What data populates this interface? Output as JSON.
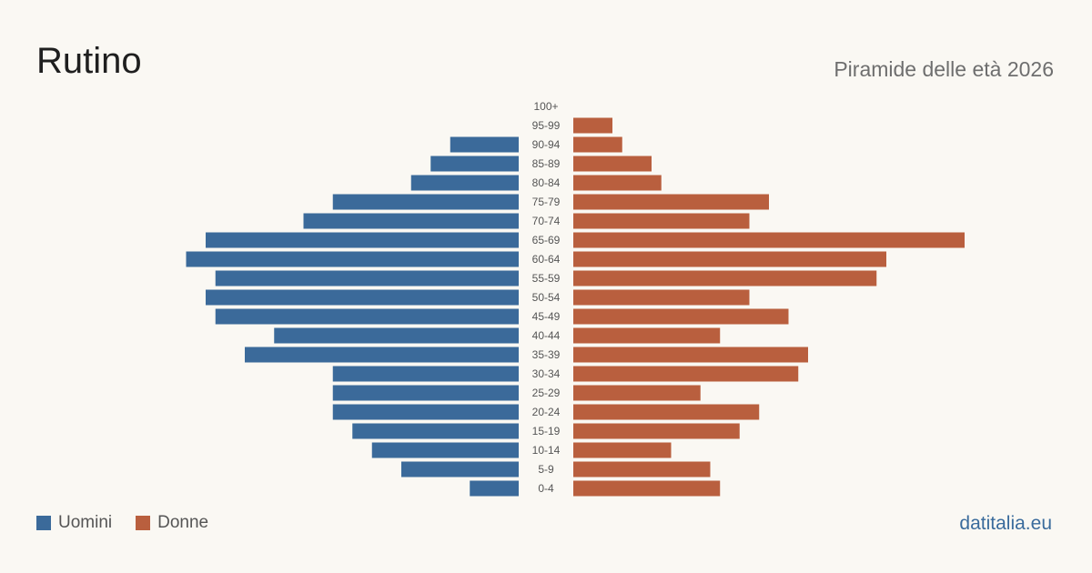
{
  "header": {
    "title": "Rutino",
    "subtitle": "Piramide delle età 2026"
  },
  "legend": {
    "male_label": "Uomini",
    "female_label": "Donne"
  },
  "footer": {
    "brand": "datitalia.eu"
  },
  "colors": {
    "male": "#3b6a9a",
    "female": "#b95f3e",
    "background": "#faf8f3"
  },
  "chart_data": {
    "type": "bar",
    "orientation": "horizontal-pyramid",
    "categories": [
      "100+",
      "95-99",
      "90-94",
      "85-89",
      "80-84",
      "75-79",
      "70-74",
      "65-69",
      "60-64",
      "55-59",
      "50-54",
      "45-49",
      "40-44",
      "35-39",
      "30-34",
      "25-29",
      "20-24",
      "15-19",
      "10-14",
      "5-9",
      "0-4"
    ],
    "series": [
      {
        "name": "Uomini",
        "values": [
          0,
          0,
          7,
          9,
          11,
          19,
          22,
          32,
          34,
          31,
          32,
          31,
          25,
          28,
          19,
          19,
          19,
          17,
          15,
          12,
          5
        ]
      },
      {
        "name": "Donne",
        "values": [
          0,
          4,
          5,
          8,
          9,
          20,
          18,
          40,
          32,
          31,
          18,
          22,
          15,
          24,
          23,
          13,
          19,
          17,
          10,
          14,
          15
        ]
      }
    ],
    "legend_position": "bottom-left",
    "grid": false
  }
}
